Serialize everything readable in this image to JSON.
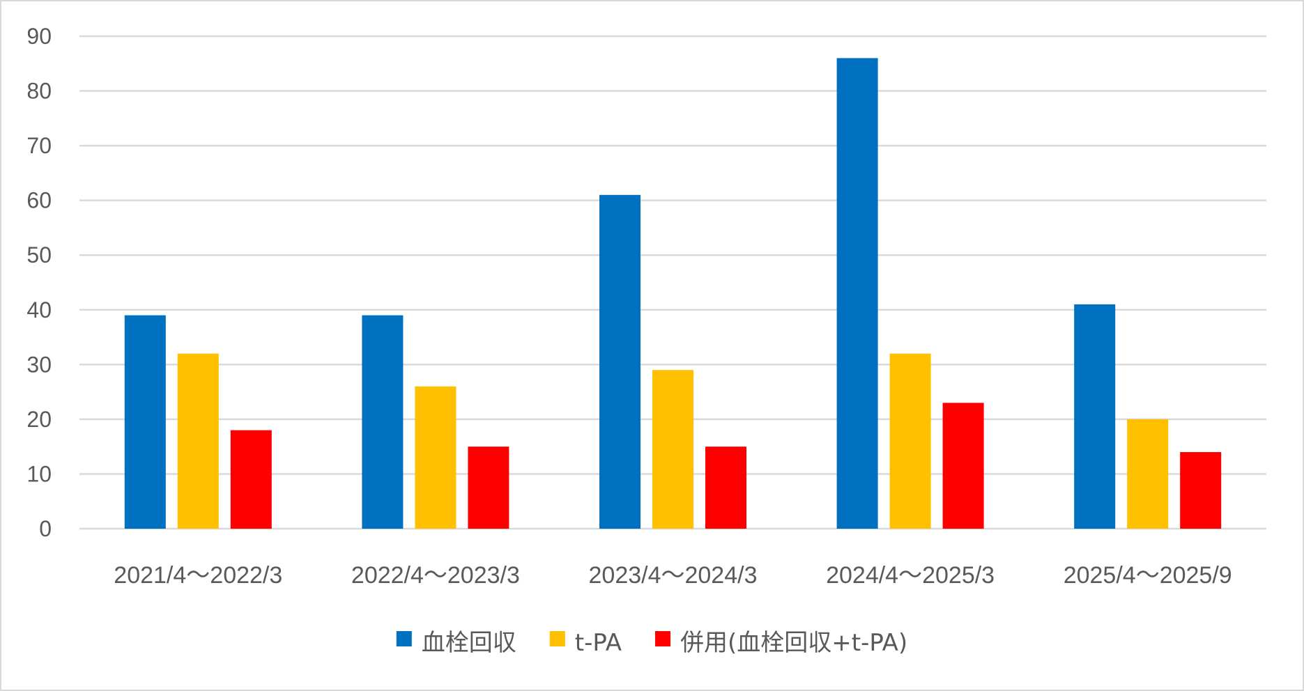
{
  "chart_data": {
    "type": "bar",
    "title": "",
    "xlabel": "",
    "ylabel": "",
    "categories": [
      "2021/4～2022/3",
      "2022/4～2023/3",
      "2023/4～2024/3",
      "2024/4～2025/3",
      "2025/4～2025/9"
    ],
    "series": [
      {
        "name": "血栓回収",
        "color": "#0070C0",
        "values": [
          39,
          39,
          61,
          86,
          41
        ]
      },
      {
        "name": "t-PA",
        "color": "#FFC000",
        "values": [
          32,
          26,
          29,
          32,
          20
        ]
      },
      {
        "name": "併用(血栓回収+t-PA)",
        "color": "#FF0000",
        "values": [
          18,
          15,
          15,
          23,
          14
        ]
      }
    ],
    "ylim": [
      0,
      90
    ],
    "yticks": [
      0,
      10,
      20,
      30,
      40,
      50,
      60,
      70,
      80,
      90
    ],
    "grid": true,
    "legend": "bottom-center",
    "colors": {
      "grid": "#d9d9d9",
      "text": "#595959",
      "border": "#d9d9d9"
    }
  }
}
